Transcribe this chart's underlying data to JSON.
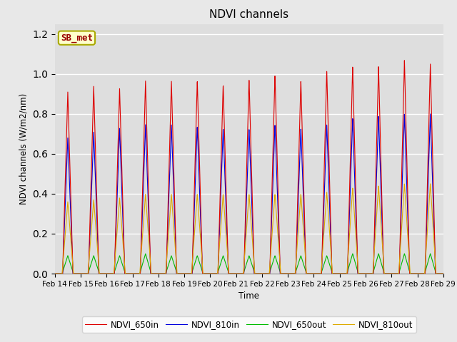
{
  "title": "NDVI channels",
  "ylabel": "NDVI channels (W/m2/nm)",
  "xlabel": "Time",
  "annotation": "SB_met",
  "legend_labels": [
    "NDVI_650in",
    "NDVI_810in",
    "NDVI_650out",
    "NDVI_810out"
  ],
  "line_colors": [
    "#dd0000",
    "#0000dd",
    "#00bb00",
    "#ddaa00"
  ],
  "ylim": [
    0,
    1.25
  ],
  "yticks": [
    0.0,
    0.2,
    0.4,
    0.6,
    0.8,
    1.0,
    1.2
  ],
  "background_color": "#e8e8e8",
  "plot_bg_color": "#dedede",
  "grid_color": "#ffffff",
  "annotation_bg": "#ffffcc",
  "annotation_text_color": "#990000",
  "annotation_border_color": "#aaaa00",
  "n_days": 15,
  "start_day": 14,
  "peaks_650in": [
    0.91,
    0.94,
    0.93,
    0.97,
    0.97,
    0.97,
    0.95,
    0.98,
    1.0,
    0.97,
    1.02,
    1.04,
    1.04,
    1.07,
    1.05
  ],
  "peaks_810in": [
    0.68,
    0.71,
    0.73,
    0.75,
    0.75,
    0.74,
    0.73,
    0.73,
    0.75,
    0.73,
    0.75,
    0.78,
    0.79,
    0.8,
    0.8
  ],
  "peaks_650out": [
    0.09,
    0.09,
    0.09,
    0.1,
    0.09,
    0.09,
    0.09,
    0.09,
    0.09,
    0.09,
    0.09,
    0.1,
    0.1,
    0.1,
    0.1
  ],
  "peaks_810out": [
    0.36,
    0.37,
    0.38,
    0.4,
    0.4,
    0.4,
    0.4,
    0.4,
    0.4,
    0.4,
    0.41,
    0.43,
    0.44,
    0.45,
    0.45
  ],
  "tick_dates": [
    "Feb 14",
    "Feb 15",
    "Feb 16",
    "Feb 17",
    "Feb 18",
    "Feb 19",
    "Feb 20",
    "Feb 21",
    "Feb 22",
    "Feb 23",
    "Feb 24",
    "Feb 25",
    "Feb 26",
    "Feb 27",
    "Feb 28",
    "Feb 29"
  ]
}
